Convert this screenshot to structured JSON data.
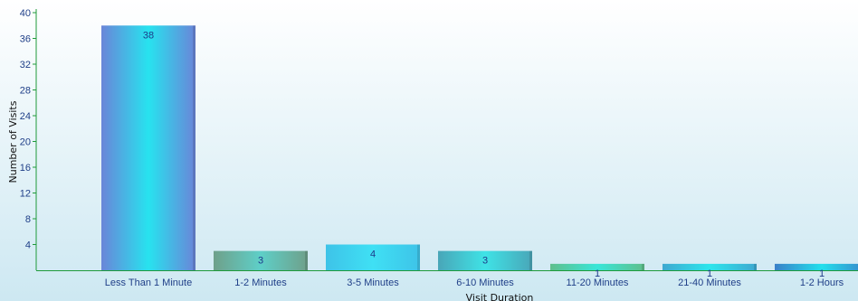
{
  "chart_data": {
    "type": "bar",
    "categories": [
      "Less Than 1 Minute",
      "1-2 Minutes",
      "3-5 Minutes",
      "6-10 Minutes",
      "11-20 Minutes",
      "21-40 Minutes",
      "1-2 Hours"
    ],
    "values": [
      38,
      3,
      4,
      3,
      1,
      1,
      1
    ],
    "data_labels": [
      "38",
      "3",
      "4",
      "3",
      "1",
      "1",
      "1"
    ],
    "xlabel": "Visit Duration",
    "ylabel": "Number of Visits",
    "ylim": [
      0,
      40
    ],
    "yticks": [
      4,
      8,
      12,
      16,
      20,
      24,
      28,
      32,
      36,
      40
    ],
    "grid": false,
    "legend": "none",
    "bar_gradients": [
      [
        "#6a85d8",
        "#27e3ef"
      ],
      [
        "#6fa08a",
        "#5ecfc8"
      ],
      [
        "#3ec3e8",
        "#3fe0f4"
      ],
      [
        "#49a6b8",
        "#3fe3e6"
      ],
      [
        "#5fbf8c",
        "#38e6d8"
      ],
      [
        "#3fa8d0",
        "#2ce6ec"
      ],
      [
        "#3a80c8",
        "#22e0ec"
      ]
    ],
    "colors": {
      "background_top": "#ffffff",
      "background_bottom": "#cde8f2",
      "axis": "#1f9a3a",
      "tick_text": "#1f3f88",
      "label_text": "#1e3a8a"
    }
  }
}
